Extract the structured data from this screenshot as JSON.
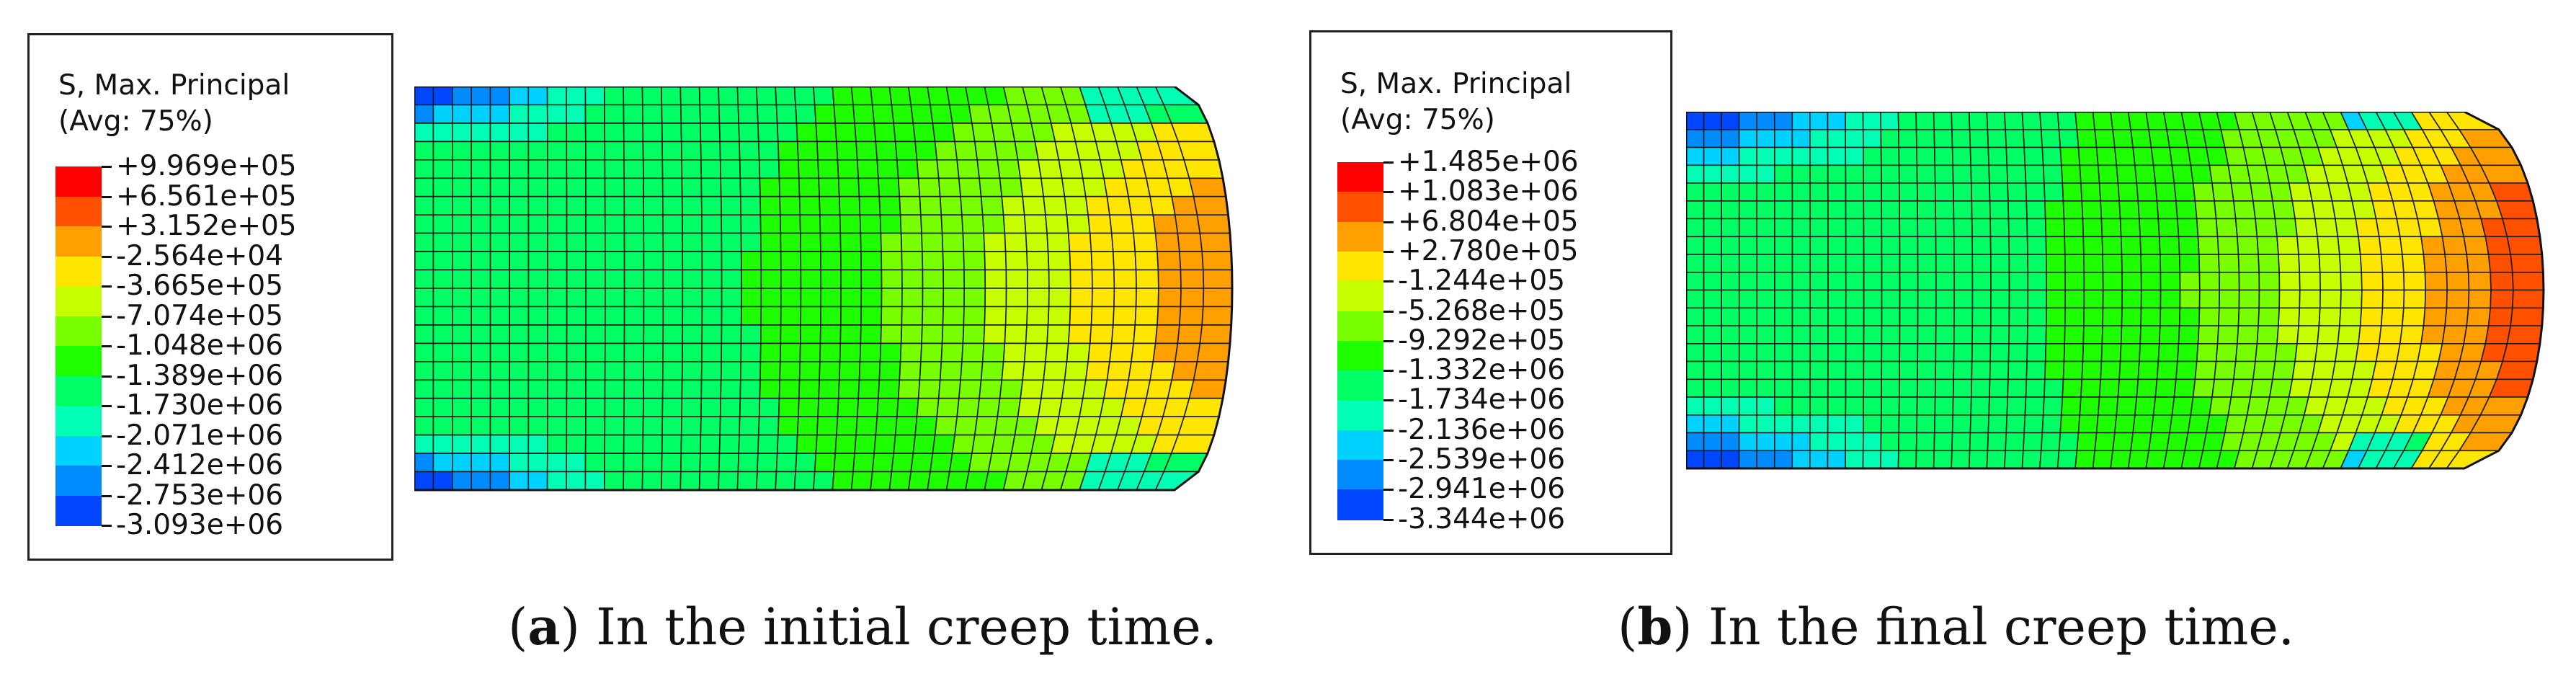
{
  "colormap": [
    "#0000ff",
    "#0046ff",
    "#008cff",
    "#00d2ff",
    "#00ffb4",
    "#00ff64",
    "#1eff00",
    "#78ff00",
    "#c8ff00",
    "#ffe600",
    "#ffa000",
    "#ff5000",
    "#ff0000"
  ],
  "panels": [
    {
      "legend_title_1": "S, Max. Principal",
      "legend_title_2": "(Avg: 75%)",
      "levels": [
        "+9.969e+05",
        "+6.561e+05",
        "+3.152e+05",
        "-2.564e+04",
        "-3.665e+05",
        "-7.074e+05",
        "-1.048e+06",
        "-1.389e+06",
        "-1.730e+06",
        "-2.071e+06",
        "-2.412e+06",
        "-2.753e+06",
        "-3.093e+06"
      ],
      "caption_letter": "a",
      "caption_text": "In the initial creep time."
    },
    {
      "legend_title_1": "S, Max. Principal",
      "legend_title_2": "(Avg: 75%)",
      "levels": [
        "+1.485e+06",
        "+1.083e+06",
        "+6.804e+05",
        "+2.780e+05",
        "-1.244e+05",
        "-5.268e+05",
        "-9.292e+05",
        "-1.332e+06",
        "-1.734e+06",
        "-2.136e+06",
        "-2.539e+06",
        "-2.941e+06",
        "-3.344e+06"
      ],
      "caption_letter": "b",
      "caption_text": "In the final creep time."
    }
  ]
}
